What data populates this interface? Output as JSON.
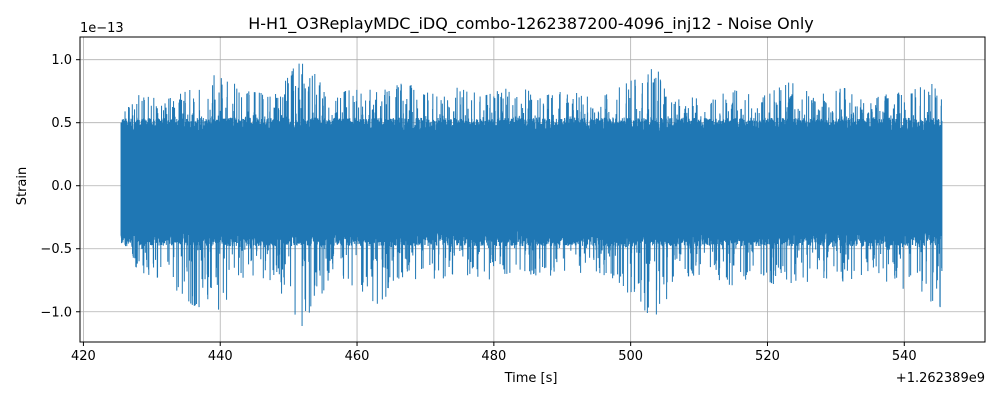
{
  "chart_data": {
    "type": "line",
    "title": "H-H1_O3ReplayMDC_iDQ_combo-1262387200-4096_inj12 - Noise Only",
    "xlabel": "Time [s]",
    "ylabel": "Strain",
    "x_offset_label": "+1.262389e9",
    "y_scale_label": "1e−13",
    "xlim": [
      419.5,
      551.8
    ],
    "ylim": [
      -1.24,
      1.18
    ],
    "x_ticks": [
      420,
      440,
      460,
      480,
      500,
      520,
      540
    ],
    "x_tick_labels": [
      "420",
      "440",
      "460",
      "480",
      "500",
      "520",
      "540"
    ],
    "y_ticks": [
      -1.0,
      -0.5,
      0.0,
      0.5,
      1.0
    ],
    "y_tick_labels": [
      "−1.0",
      "−0.5",
      "0.0",
      "0.5",
      "1.0"
    ],
    "grid": true,
    "series": [
      {
        "color": "#1f77b4",
        "x_range": [
          425.5,
          545.5
        ],
        "envelope_x": [
          425.5,
          428,
          432,
          436,
          439.5,
          444,
          448,
          451.7,
          452.5,
          456,
          460,
          463,
          467,
          471,
          475,
          479,
          483,
          487,
          491,
          495,
          498,
          503.5,
          507,
          511,
          515,
          519,
          523.5,
          527,
          531,
          535,
          539,
          543,
          545.3
        ],
        "envelope_upper": [
          0.55,
          0.72,
          0.68,
          0.77,
          0.89,
          0.75,
          0.72,
          1.06,
          1.0,
          0.7,
          0.8,
          0.74,
          0.82,
          0.75,
          0.78,
          0.72,
          0.8,
          0.71,
          0.76,
          0.68,
          0.77,
          0.94,
          0.72,
          0.68,
          0.76,
          0.7,
          0.83,
          0.73,
          0.78,
          0.7,
          0.74,
          0.82,
          0.97
        ],
        "envelope_lower": [
          -0.42,
          -0.68,
          -0.75,
          -0.95,
          -1.0,
          -0.7,
          -0.76,
          -1.13,
          -1.08,
          -0.75,
          -0.8,
          -0.95,
          -0.72,
          -0.78,
          -0.7,
          -0.75,
          -0.68,
          -0.72,
          -0.7,
          -0.68,
          -0.76,
          -1.07,
          -0.73,
          -0.7,
          -0.8,
          -0.7,
          -0.92,
          -0.72,
          -0.76,
          -0.7,
          -0.8,
          -0.9,
          -1.0
        ]
      }
    ]
  }
}
